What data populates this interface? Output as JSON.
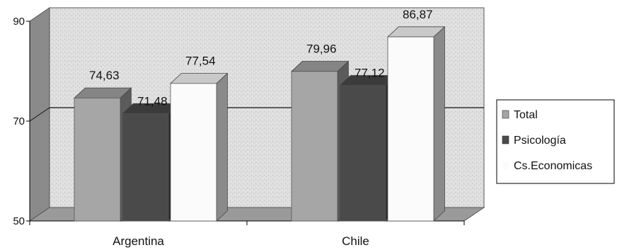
{
  "chart_data": {
    "type": "bar",
    "categories": [
      "Argentina",
      "Chile"
    ],
    "series": [
      {
        "name": "Total",
        "values": [
          74.63,
          79.96
        ],
        "labels": [
          "74,63",
          "79,96"
        ]
      },
      {
        "name": "Psicología",
        "values": [
          71.48,
          77.12
        ],
        "labels": [
          "71,48",
          "77,12"
        ]
      },
      {
        "name": "Cs.Economicas",
        "values": [
          77.54,
          86.87
        ],
        "labels": [
          "77,54",
          "86,87"
        ]
      }
    ],
    "yticks": [
      50,
      70,
      90
    ],
    "ylim": [
      50,
      90
    ],
    "grid": "horizontal line at 70",
    "legend": "right",
    "three_d": true,
    "colors": {
      "Total": "#a6a6a6",
      "Psicología": "#4a4a4a",
      "Cs.Economicas": "#fbfbfb",
      "wall": "#dcdcdc",
      "wall_side": "#8a8a8a"
    }
  }
}
